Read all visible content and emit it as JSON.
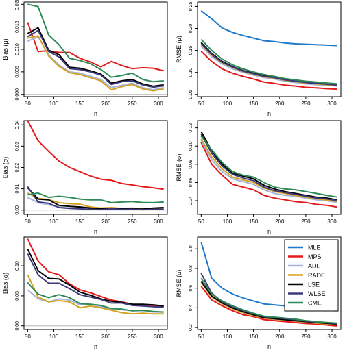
{
  "series_colors": {
    "MLE": "#1f78c8",
    "MPS": "#e41a1c",
    "ADE": "#a6b4d8",
    "RADE": "#d4a21f",
    "LSE": "#000000",
    "WLSE": "#3d3a7a",
    "CME": "#2e8b57"
  },
  "legend_title_none": "",
  "chart_data": [
    {
      "type": "line",
      "ylabel": "Bias (μ)",
      "xlabel": "n",
      "x": [
        50,
        70,
        90,
        110,
        130,
        150,
        170,
        190,
        210,
        230,
        250,
        270,
        290,
        310
      ],
      "xticks": [
        50,
        100,
        150,
        200,
        250,
        300
      ],
      "ylim": [
        -0.0005,
        0.0205
      ],
      "yticks": [
        "0.000",
        "0.005",
        "0.010",
        "0.015",
        "0.020"
      ],
      "ytick_values": [
        0,
        0.005,
        0.01,
        0.015,
        0.02
      ],
      "zero_line": true,
      "series": [
        {
          "name": "MPS",
          "values": [
            0.016,
            0.0095,
            0.0097,
            0.0093,
            0.0093,
            0.008,
            0.0072,
            0.0061,
            0.0073,
            0.0064,
            0.0057,
            0.0059,
            0.0058,
            0.0052
          ]
        },
        {
          "name": "ADE",
          "values": [
            0.0118,
            0.0128,
            0.0088,
            0.0065,
            0.005,
            0.0047,
            0.004,
            0.0033,
            0.0015,
            0.002,
            0.0025,
            0.0015,
            0.001,
            0.0015
          ]
        },
        {
          "name": "RADE",
          "values": [
            0.0125,
            0.013,
            0.0085,
            0.0062,
            0.0048,
            0.0044,
            0.0037,
            0.003,
            0.001,
            0.0017,
            0.0022,
            0.0012,
            0.0008,
            0.0012
          ]
        },
        {
          "name": "LSE",
          "values": [
            0.0135,
            0.0148,
            0.0098,
            0.0088,
            0.006,
            0.0058,
            0.0052,
            0.0045,
            0.0025,
            0.003,
            0.0033,
            0.0023,
            0.0018,
            0.0021
          ]
        },
        {
          "name": "WLSE",
          "values": [
            0.0128,
            0.0142,
            0.0095,
            0.0083,
            0.0057,
            0.0055,
            0.005,
            0.0043,
            0.0022,
            0.0028,
            0.003,
            0.0021,
            0.0016,
            0.0019
          ]
        },
        {
          "name": "CME",
          "values": [
            0.02,
            0.0195,
            0.0132,
            0.011,
            0.008,
            0.0075,
            0.0068,
            0.0055,
            0.0038,
            0.0042,
            0.0047,
            0.0033,
            0.0028,
            0.003
          ]
        }
      ]
    },
    {
      "type": "line",
      "ylabel": "RMSE (μ)",
      "xlabel": "n",
      "x": [
        50,
        70,
        90,
        110,
        130,
        150,
        170,
        190,
        210,
        230,
        250,
        270,
        290,
        310
      ],
      "xticks": [
        50,
        100,
        150,
        200,
        250,
        300
      ],
      "ylim": [
        0.045,
        0.26
      ],
      "yticks": [
        "0.05",
        "0.10",
        "0.15",
        "0.20",
        "0.25"
      ],
      "ytick_values": [
        0.05,
        0.1,
        0.15,
        0.2,
        0.25
      ],
      "zero_line": false,
      "series": [
        {
          "name": "MLE",
          "values": [
            0.24,
            0.222,
            0.201,
            0.191,
            0.184,
            0.178,
            0.172,
            0.17,
            0.167,
            0.165,
            0.164,
            0.163,
            0.162,
            0.161
          ]
        },
        {
          "name": "MPS",
          "values": [
            0.148,
            0.125,
            0.108,
            0.098,
            0.091,
            0.085,
            0.078,
            0.075,
            0.071,
            0.069,
            0.066,
            0.065,
            0.063,
            0.062
          ]
        },
        {
          "name": "ADE",
          "values": [
            0.16,
            0.136,
            0.119,
            0.108,
            0.1,
            0.094,
            0.088,
            0.085,
            0.08,
            0.077,
            0.074,
            0.072,
            0.071,
            0.069
          ]
        },
        {
          "name": "RADE",
          "values": [
            0.163,
            0.139,
            0.122,
            0.111,
            0.102,
            0.096,
            0.09,
            0.087,
            0.082,
            0.079,
            0.076,
            0.074,
            0.072,
            0.07
          ]
        },
        {
          "name": "LSE",
          "values": [
            0.168,
            0.143,
            0.125,
            0.113,
            0.104,
            0.098,
            0.092,
            0.089,
            0.084,
            0.081,
            0.078,
            0.076,
            0.074,
            0.072
          ]
        },
        {
          "name": "WLSE",
          "values": [
            0.166,
            0.141,
            0.123,
            0.112,
            0.103,
            0.097,
            0.091,
            0.088,
            0.083,
            0.08,
            0.077,
            0.075,
            0.073,
            0.071
          ]
        },
        {
          "name": "CME",
          "values": [
            0.175,
            0.15,
            0.13,
            0.117,
            0.108,
            0.101,
            0.095,
            0.091,
            0.086,
            0.083,
            0.08,
            0.078,
            0.076,
            0.074
          ]
        }
      ]
    },
    {
      "type": "line",
      "ylabel": "Bias (σ)",
      "xlabel": "n",
      "x": [
        50,
        70,
        90,
        110,
        130,
        150,
        170,
        190,
        210,
        230,
        250,
        270,
        290,
        310
      ],
      "xticks": [
        50,
        100,
        150,
        200,
        250,
        300
      ],
      "ylim": [
        -0.002,
        0.042
      ],
      "yticks": [
        "0.00",
        "0.01",
        "0.02",
        "0.03",
        "0.04"
      ],
      "ytick_values": [
        0,
        0.01,
        0.02,
        0.03,
        0.04
      ],
      "zero_line": true,
      "series": [
        {
          "name": "MPS",
          "values": [
            0.042,
            0.0325,
            0.0275,
            0.023,
            0.02,
            0.018,
            0.016,
            0.0145,
            0.014,
            0.0125,
            0.0118,
            0.011,
            0.0105,
            0.0098
          ]
        },
        {
          "name": "ADE",
          "values": [
            0.006,
            0.0035,
            0.0025,
            0.0015,
            0.001,
            0.0008,
            0.0005,
            0.0003,
            0.0005,
            0.0004,
            0.0004,
            0.0003,
            0.0003,
            0.0004
          ]
        },
        {
          "name": "RADE",
          "values": [
            0.008,
            0.0055,
            0.005,
            0.0035,
            0.003,
            0.0028,
            0.0015,
            0.001,
            0.0012,
            0.0008,
            0.001,
            0.0007,
            0.0006,
            0.0008
          ]
        },
        {
          "name": "LSE",
          "values": [
            0.0105,
            0.0052,
            0.0048,
            0.0022,
            0.0018,
            0.0015,
            0.001,
            0.0007,
            0.0005,
            0.0008,
            0.0006,
            0.0005,
            0.001,
            0.0012
          ]
        },
        {
          "name": "WLSE",
          "values": [
            0.011,
            0.0038,
            0.0032,
            0.0012,
            0.0008,
            0.0006,
            0.0004,
            0.0002,
            0.0006,
            0.0003,
            0.0004,
            0.0002,
            0.0003,
            0.0005
          ]
        },
        {
          "name": "CME",
          "values": [
            0.0072,
            0.008,
            0.006,
            0.0065,
            0.006,
            0.0052,
            0.0048,
            0.0048,
            0.0035,
            0.0038,
            0.004,
            0.0036,
            0.0035,
            0.0038
          ]
        }
      ]
    },
    {
      "type": "line",
      "ylabel": "RMSE (σ)",
      "xlabel": "n",
      "x": [
        50,
        70,
        90,
        110,
        130,
        150,
        170,
        190,
        210,
        230,
        250,
        270,
        290,
        310
      ],
      "xticks": [
        50,
        100,
        150,
        200,
        250,
        300
      ],
      "ylim": [
        0.025,
        0.128
      ],
      "yticks": [
        "0.04",
        "0.06",
        "0.08",
        "0.10",
        "0.12"
      ],
      "ytick_values": [
        0.04,
        0.06,
        0.08,
        0.1,
        0.12
      ],
      "zero_line": false,
      "series": [
        {
          "name": "MPS",
          "values": [
            0.104,
            0.08,
            0.068,
            0.058,
            0.055,
            0.052,
            0.046,
            0.043,
            0.041,
            0.039,
            0.038,
            0.036,
            0.035,
            0.033
          ]
        },
        {
          "name": "ADE",
          "values": [
            0.106,
            0.085,
            0.072,
            0.064,
            0.061,
            0.058,
            0.052,
            0.048,
            0.046,
            0.045,
            0.043,
            0.041,
            0.04,
            0.038
          ]
        },
        {
          "name": "RADE",
          "values": [
            0.108,
            0.088,
            0.075,
            0.066,
            0.063,
            0.06,
            0.054,
            0.05,
            0.048,
            0.046,
            0.044,
            0.042,
            0.041,
            0.039
          ]
        },
        {
          "name": "LSE",
          "values": [
            0.116,
            0.095,
            0.08,
            0.07,
            0.067,
            0.064,
            0.057,
            0.053,
            0.05,
            0.048,
            0.046,
            0.044,
            0.043,
            0.041
          ]
        },
        {
          "name": "WLSE",
          "values": [
            0.113,
            0.092,
            0.078,
            0.069,
            0.065,
            0.062,
            0.055,
            0.051,
            0.049,
            0.047,
            0.045,
            0.043,
            0.042,
            0.04
          ]
        },
        {
          "name": "CME",
          "values": [
            0.111,
            0.096,
            0.082,
            0.072,
            0.068,
            0.066,
            0.06,
            0.055,
            0.053,
            0.052,
            0.05,
            0.048,
            0.046,
            0.044
          ]
        }
      ]
    },
    {
      "type": "line",
      "ylabel": "Bias (α)",
      "xlabel": "n",
      "x": [
        50,
        70,
        90,
        110,
        130,
        150,
        170,
        190,
        210,
        230,
        250,
        270,
        290,
        310
      ],
      "xticks": [
        50,
        100,
        150,
        200,
        250,
        300
      ],
      "ylim": [
        -0.006,
        0.148
      ],
      "yticks": [
        "0.00",
        "0.05",
        "0.10"
      ],
      "ytick_values": [
        0,
        0.05,
        0.1
      ],
      "zero_line": true,
      "series": [
        {
          "name": "MPS",
          "values": [
            0.145,
            0.108,
            0.09,
            0.085,
            0.07,
            0.06,
            0.055,
            0.049,
            0.043,
            0.04,
            0.036,
            0.035,
            0.034,
            0.033
          ]
        },
        {
          "name": "ADE",
          "values": [
            0.06,
            0.045,
            0.04,
            0.045,
            0.043,
            0.035,
            0.036,
            0.032,
            0.028,
            0.027,
            0.025,
            0.025,
            0.023,
            0.023
          ]
        },
        {
          "name": "RADE",
          "values": [
            0.085,
            0.048,
            0.04,
            0.042,
            0.04,
            0.03,
            0.033,
            0.03,
            0.026,
            0.022,
            0.02,
            0.021,
            0.02,
            0.02
          ]
        },
        {
          "name": "LSE",
          "values": [
            0.128,
            0.092,
            0.079,
            0.078,
            0.068,
            0.056,
            0.051,
            0.045,
            0.041,
            0.039,
            0.036,
            0.036,
            0.035,
            0.033
          ]
        },
        {
          "name": "WLSE",
          "values": [
            0.12,
            0.085,
            0.071,
            0.071,
            0.062,
            0.052,
            0.048,
            0.044,
            0.038,
            0.038,
            0.034,
            0.033,
            0.032,
            0.031
          ]
        },
        {
          "name": "CME",
          "values": [
            0.072,
            0.053,
            0.047,
            0.052,
            0.047,
            0.037,
            0.036,
            0.034,
            0.029,
            0.028,
            0.025,
            0.026,
            0.024,
            0.023
          ]
        }
      ]
    },
    {
      "type": "line",
      "ylabel": "RMSE (α)",
      "xlabel": "n",
      "x": [
        50,
        70,
        90,
        110,
        130,
        150,
        170,
        190,
        210,
        230,
        250,
        270,
        290,
        310
      ],
      "xticks": [
        50,
        100,
        150,
        200,
        250,
        300
      ],
      "ylim": [
        0.18,
        1.12
      ],
      "yticks": [
        "0.2",
        "0.4",
        "0.6",
        "0.8",
        "1.0"
      ],
      "ytick_values": [
        0.2,
        0.4,
        0.6,
        0.8,
        1.0
      ],
      "zero_line": false,
      "legend": [
        "MLE",
        "MPS",
        "ADE",
        "RADE",
        "LSE",
        "WLSE",
        "CME"
      ],
      "series": [
        {
          "name": "MLE",
          "values": [
            1.07,
            0.7,
            0.6,
            0.54,
            0.5,
            0.47,
            0.44,
            0.43,
            0.42,
            0.4,
            0.39,
            0.385,
            0.375,
            0.37
          ]
        },
        {
          "name": "MPS",
          "values": [
            0.62,
            0.48,
            0.42,
            0.37,
            0.33,
            0.31,
            0.28,
            0.27,
            0.26,
            0.25,
            0.24,
            0.235,
            0.225,
            0.215
          ]
        },
        {
          "name": "ADE",
          "values": [
            0.66,
            0.51,
            0.44,
            0.39,
            0.35,
            0.32,
            0.295,
            0.285,
            0.275,
            0.265,
            0.255,
            0.245,
            0.238,
            0.23
          ]
        },
        {
          "name": "RADE",
          "values": [
            0.66,
            0.51,
            0.44,
            0.39,
            0.35,
            0.32,
            0.295,
            0.285,
            0.275,
            0.265,
            0.255,
            0.245,
            0.238,
            0.23
          ]
        },
        {
          "name": "LSE",
          "values": [
            0.67,
            0.52,
            0.45,
            0.4,
            0.36,
            0.33,
            0.3,
            0.29,
            0.28,
            0.27,
            0.26,
            0.25,
            0.243,
            0.235
          ]
        },
        {
          "name": "WLSE",
          "values": [
            0.75,
            0.55,
            0.46,
            0.41,
            0.37,
            0.34,
            0.31,
            0.3,
            0.29,
            0.28,
            0.265,
            0.255,
            0.248,
            0.24
          ]
        },
        {
          "name": "CME",
          "values": [
            0.7,
            0.54,
            0.47,
            0.42,
            0.38,
            0.345,
            0.315,
            0.305,
            0.295,
            0.285,
            0.27,
            0.26,
            0.252,
            0.245
          ]
        }
      ]
    }
  ]
}
